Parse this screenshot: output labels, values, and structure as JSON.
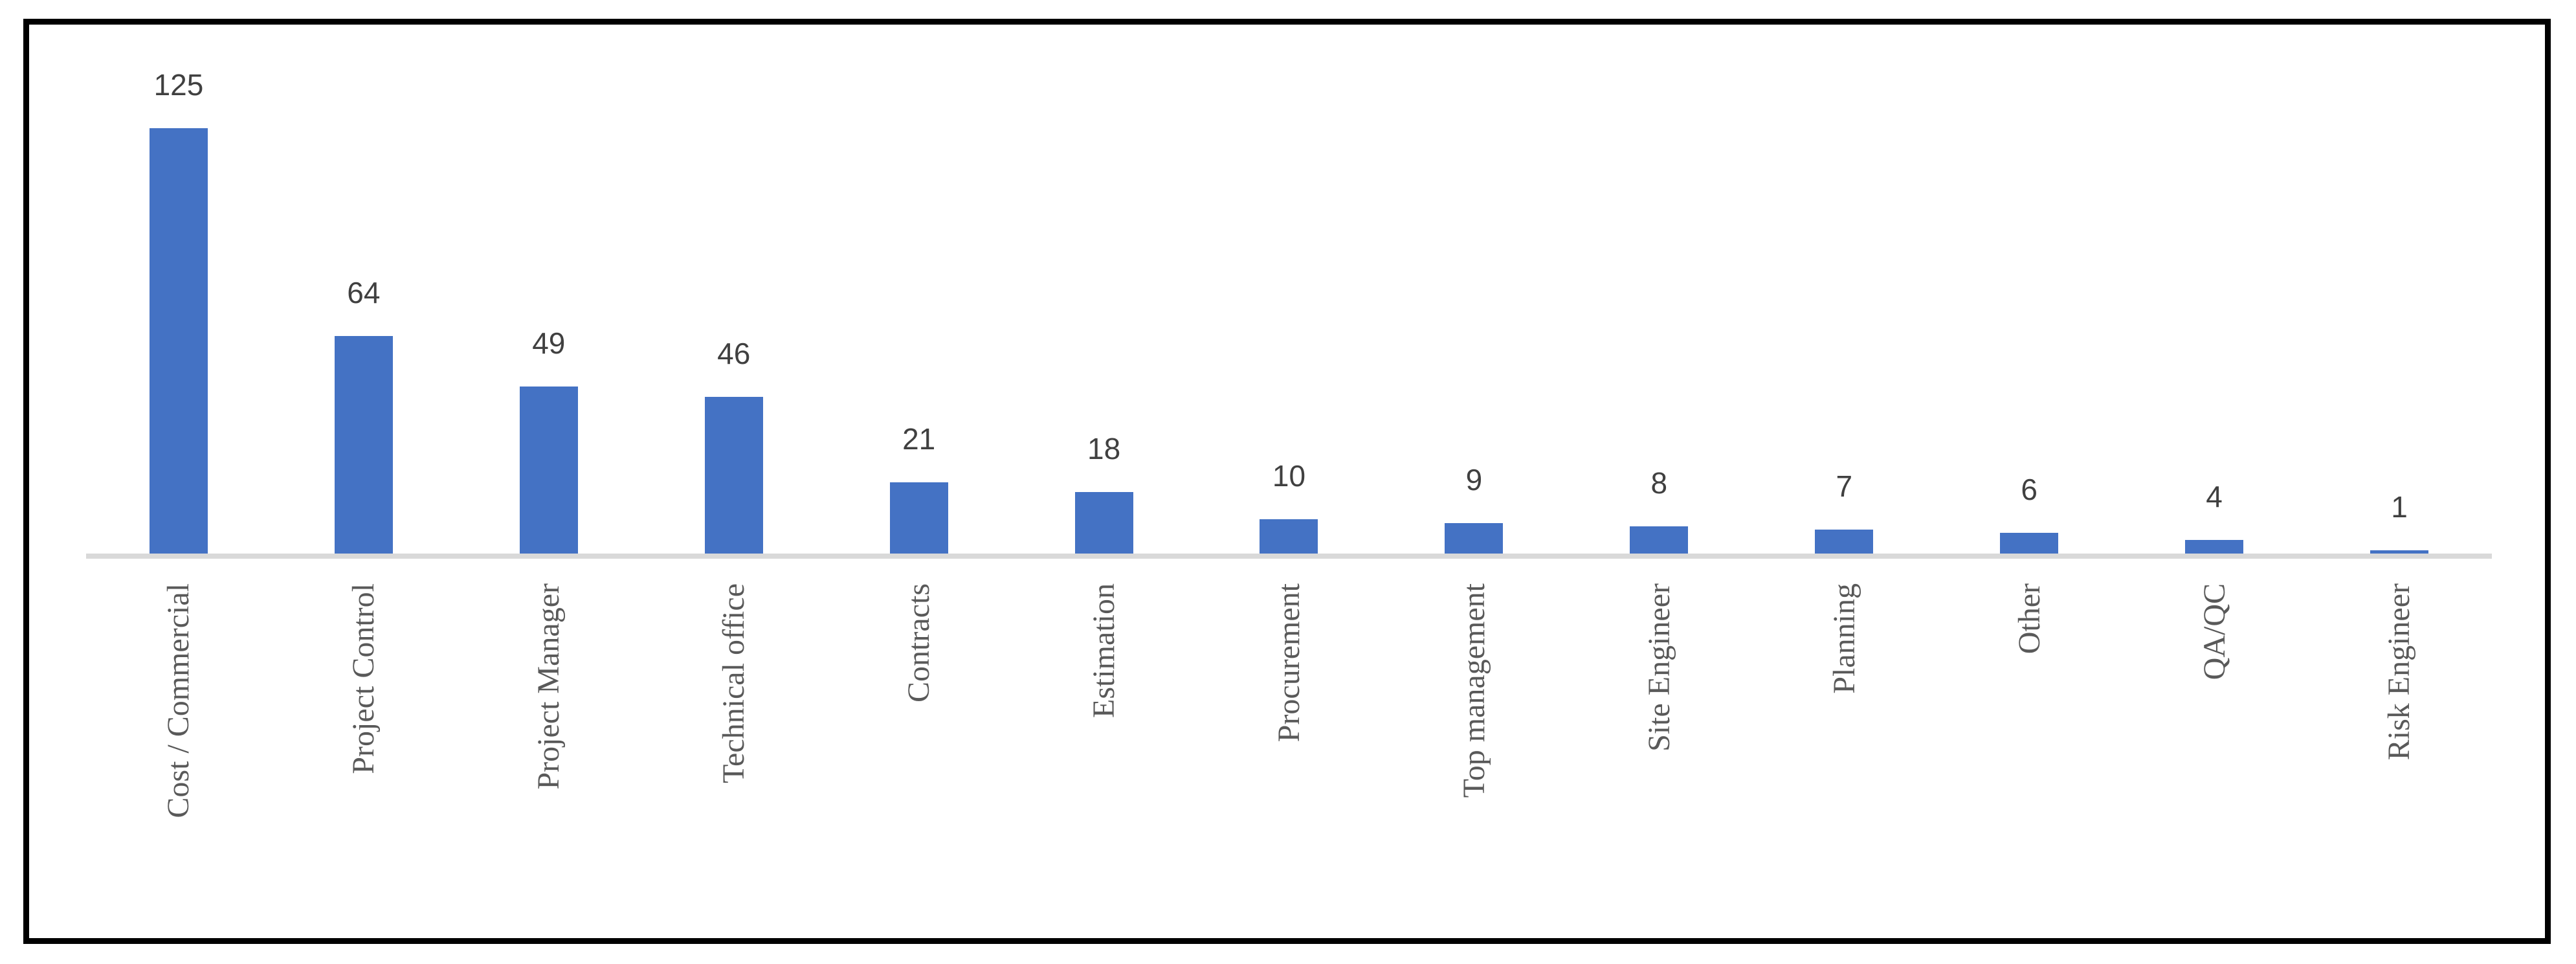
{
  "chart_data": {
    "type": "bar",
    "title": "",
    "xlabel": "",
    "ylabel": "",
    "categories": [
      "Cost / Commercial",
      "Project Control",
      "Project Manager",
      "Technical office",
      "Contracts",
      "Estimation",
      "Procurement",
      "Top management",
      "Site Engineer",
      "Planning",
      "Other",
      "QA/QC",
      "Risk Engineer"
    ],
    "values": [
      125,
      64,
      49,
      46,
      21,
      18,
      10,
      9,
      8,
      7,
      6,
      4,
      1
    ],
    "data_labels_shown": true,
    "ylim": [
      0,
      130
    ],
    "grid": false,
    "legend": false,
    "bar_color": "#4472C4",
    "axis_line_color": "#D9D9D9",
    "value_label_color": "#404040",
    "category_label_color": "#595959",
    "border_color": "#000000",
    "background_color": "#ffffff"
  }
}
